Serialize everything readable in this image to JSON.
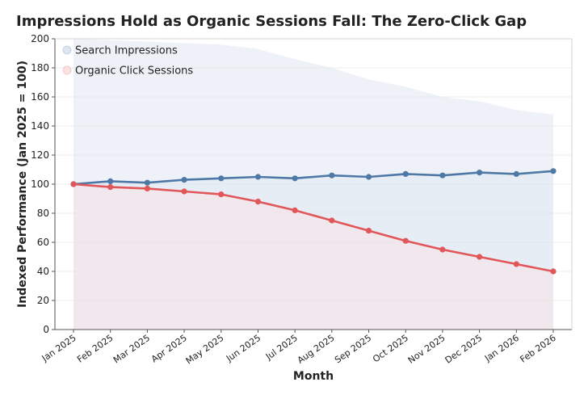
{
  "chart_data": {
    "type": "line",
    "title": "Impressions Hold as Organic Sessions Fall: The Zero-Click Gap",
    "xlabel": "Month",
    "ylabel": "Indexed Performance (Jan 2025 = 100)",
    "ylim": [
      0,
      200
    ],
    "yticks": [
      0,
      20,
      40,
      60,
      80,
      100,
      120,
      140,
      160,
      180,
      200
    ],
    "grid": true,
    "legend_position": "top-left",
    "categories": [
      "Jan 2025",
      "Feb 2025",
      "Mar 2025",
      "Apr 2025",
      "May 2025",
      "Jun 2025",
      "Jul 2025",
      "Aug 2025",
      "Sep 2025",
      "Oct 2025",
      "Nov 2025",
      "Dec 2025",
      "Jan 2026",
      "Feb 2026"
    ],
    "series": [
      {
        "name": "Search Impressions",
        "color": "#4e79a7",
        "fill_color": "#dde6f2",
        "values": [
          100,
          102,
          101,
          103,
          104,
          105,
          104,
          106,
          105,
          107,
          106,
          108,
          107,
          109
        ]
      },
      {
        "name": "Organic Click Sessions",
        "color": "#e15759",
        "fill_color": "#fbe3e3",
        "values": [
          100,
          98,
          97,
          95,
          93,
          88,
          82,
          75,
          68,
          61,
          55,
          50,
          45,
          40
        ]
      }
    ],
    "background_band": {
      "color": "#eef2f8",
      "upper_values": [
        200,
        199,
        198,
        197,
        196,
        193,
        186,
        180,
        172,
        167,
        160,
        157,
        151,
        148
      ]
    }
  }
}
